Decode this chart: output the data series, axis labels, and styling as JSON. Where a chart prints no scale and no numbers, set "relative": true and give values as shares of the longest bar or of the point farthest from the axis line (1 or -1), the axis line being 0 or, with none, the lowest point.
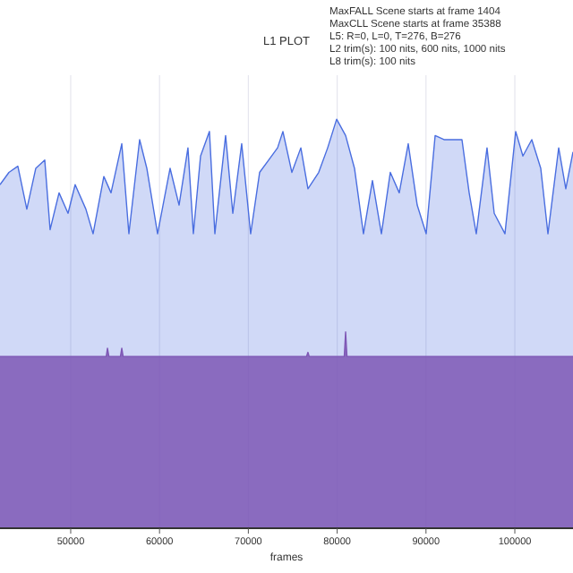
{
  "chart_data": {
    "type": "area",
    "title": "L1 PLOT",
    "xlabel": "frames",
    "relative": true,
    "grid": "x",
    "annotations": [
      "MaxFALL Scene starts at frame 1404",
      "MaxCLL Scene starts at frame 35388",
      "L5: R=0, L=0, T=276, B=276",
      "L2 trim(s): 100 nits, 600 nits, 1000 nits",
      "L8 trim(s): 100 nits"
    ],
    "xlim": [
      42040,
      106550
    ],
    "xticks": [
      50000,
      60000,
      70000,
      80000,
      90000,
      100000
    ],
    "series": [
      {
        "color": "#4a6ee0",
        "x": [
          42040,
          43050,
          44050,
          45060,
          46070,
          47080,
          47680,
          48690,
          49700,
          50500,
          51710,
          52520,
          53730,
          54540,
          55750,
          56550,
          57760,
          58570,
          59780,
          61190,
          62200,
          63200,
          63810,
          64620,
          65620,
          66230,
          67440,
          68250,
          69250,
          70260,
          71270,
          72280,
          73290,
          73890,
          74900,
          75910,
          76710,
          77920,
          78930,
          79940,
          80950,
          81950,
          82960,
          83970,
          84980,
          85980,
          86990,
          88000,
          89010,
          90020,
          91030,
          92030,
          94050,
          94860,
          95660,
          96870,
          97680,
          98890,
          100100,
          100910,
          101910,
          102920,
          103730,
          104940,
          105740,
          106550
        ],
        "values": [
          0.84,
          0.87,
          0.885,
          0.78,
          0.88,
          0.9,
          0.73,
          0.82,
          0.77,
          0.84,
          0.78,
          0.72,
          0.86,
          0.82,
          0.94,
          0.72,
          0.95,
          0.88,
          0.72,
          0.88,
          0.79,
          0.93,
          0.72,
          0.91,
          0.97,
          0.72,
          0.96,
          0.77,
          0.94,
          0.72,
          0.87,
          0.9,
          0.93,
          0.97,
          0.87,
          0.93,
          0.83,
          0.87,
          0.93,
          1.0,
          0.96,
          0.88,
          0.72,
          0.85,
          0.72,
          0.87,
          0.82,
          0.94,
          0.79,
          0.72,
          0.96,
          0.95,
          0.95,
          0.82,
          0.72,
          0.93,
          0.77,
          0.72,
          0.97,
          0.91,
          0.95,
          0.88,
          0.72,
          0.93,
          0.83,
          0.92
        ]
      },
      {
        "color": "#7e57b5",
        "x": [
          42040,
          54000,
          54140,
          54300,
          55600,
          55750,
          55900,
          76550,
          76710,
          76850,
          80800,
          80950,
          81100,
          106550
        ],
        "values": [
          0.42,
          0.42,
          0.44,
          0.42,
          0.42,
          0.44,
          0.42,
          0.42,
          0.43,
          0.42,
          0.42,
          0.48,
          0.42,
          0.42
        ]
      }
    ]
  }
}
